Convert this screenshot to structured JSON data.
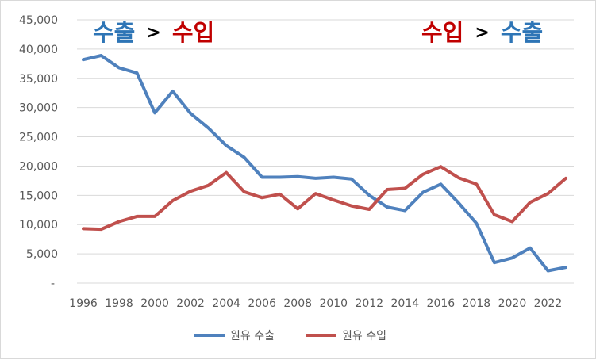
{
  "chart_data": {
    "type": "line",
    "x": [
      1996,
      1997,
      1998,
      1999,
      2000,
      2001,
      2002,
      2003,
      2004,
      2005,
      2006,
      2007,
      2008,
      2009,
      2010,
      2011,
      2012,
      2013,
      2014,
      2015,
      2016,
      2017,
      2018,
      2019,
      2020,
      2021,
      2022,
      2023
    ],
    "x_tick_labels": [
      "1996",
      "1998",
      "2000",
      "2002",
      "2004",
      "2006",
      "2008",
      "2010",
      "2012",
      "2014",
      "2016",
      "2018",
      "2020",
      "2022"
    ],
    "y_tick_labels": [
      "-",
      "5,000",
      "10,000",
      "15,000",
      "20,000",
      "25,000",
      "30,000",
      "35,000",
      "40,000",
      "45,000"
    ],
    "ylim": [
      0,
      45000
    ],
    "grid": true,
    "legend_position": "bottom",
    "series": [
      {
        "name": "원유 수출",
        "color": "#4f81bd",
        "values": [
          38200,
          38900,
          36800,
          35900,
          29100,
          32800,
          29000,
          26500,
          23500,
          21500,
          18100,
          18100,
          18200,
          17900,
          18100,
          17800,
          15000,
          13000,
          12400,
          15500,
          16900,
          13700,
          10200,
          3500,
          4300,
          6000,
          2100,
          2700
        ]
      },
      {
        "name": "원유 수입",
        "color": "#c0504d",
        "values": [
          9300,
          9200,
          10500,
          11400,
          11400,
          14100,
          15700,
          16700,
          18900,
          15600,
          14600,
          15200,
          12700,
          15300,
          14200,
          13200,
          12600,
          16000,
          16200,
          18600,
          19900,
          18000,
          16900,
          11700,
          10500,
          13800,
          15300,
          17900
        ]
      }
    ],
    "annotations": {
      "left": {
        "part1": "수출",
        "sep": ">",
        "part2": "수입"
      },
      "right": {
        "part1": "수입",
        "sep": ">",
        "part2": "수출"
      },
      "colors": {
        "export": "#2e75b6",
        "import": "#c00000"
      }
    }
  }
}
